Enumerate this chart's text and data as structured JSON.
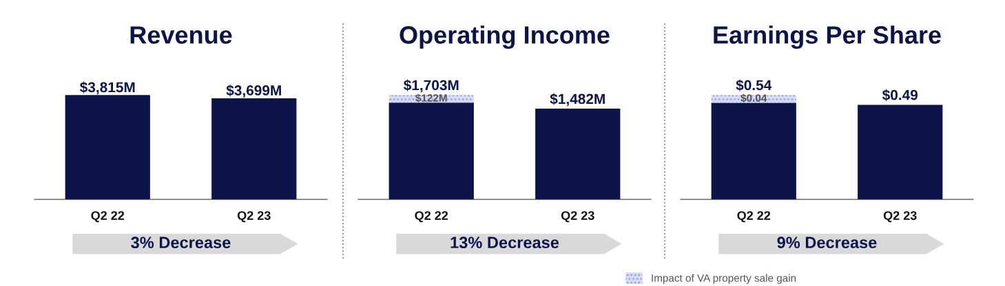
{
  "chart_data": [
    {
      "type": "bar",
      "title": "Revenue",
      "categories": [
        "Q2 22",
        "Q2 23"
      ],
      "stacked": true,
      "grid": false,
      "tick_labels": "x",
      "series": [
        {
          "color": "#0c1449",
          "values": [
            3815,
            3699
          ],
          "value_labels": [
            "$3,815M",
            "$3,699M"
          ]
        }
      ],
      "annotations": [
        "3% Decrease"
      ]
    },
    {
      "type": "bar",
      "title": "Operating Income",
      "categories": [
        "Q2 22",
        "Q2 23"
      ],
      "stacked": true,
      "grid": false,
      "tick_labels": "x",
      "series": [
        {
          "color": "#0c1449",
          "values": [
            1581,
            1482
          ]
        },
        {
          "color": "#d6dcf7",
          "values": [
            122,
            null
          ],
          "value_labels": [
            "$122M",
            null
          ]
        }
      ],
      "totals": [
        "$1,703M",
        "$1,482M"
      ],
      "annotations": [
        "13% Decrease"
      ]
    },
    {
      "type": "bar",
      "title": "Earnings Per Share",
      "categories": [
        "Q2 22",
        "Q2 23"
      ],
      "stacked": true,
      "grid": false,
      "tick_labels": "x",
      "legend": "bottom",
      "series": [
        {
          "color": "#0c1449",
          "values": [
            0.5,
            0.49
          ]
        },
        {
          "name": "Impact of VA property sale gain",
          "color": "#d6dcf7",
          "values": [
            0.04,
            null
          ],
          "value_labels": [
            "$0.04",
            null
          ]
        }
      ],
      "totals": [
        "$0.54",
        "$0.49"
      ],
      "annotations": [
        "9% Decrease"
      ]
    }
  ]
}
